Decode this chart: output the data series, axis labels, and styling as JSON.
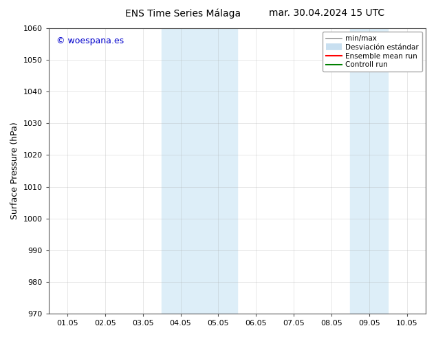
{
  "title_left": "ENS Time Series Málaga",
  "title_right": "mar. 30.04.2024 15 UTC",
  "ylabel": "Surface Pressure (hPa)",
  "ylim": [
    970,
    1060
  ],
  "yticks": [
    970,
    980,
    990,
    1000,
    1010,
    1020,
    1030,
    1040,
    1050,
    1060
  ],
  "xlim_min": 0.5,
  "xlim_max": 10.5,
  "xtick_labels": [
    "01.05",
    "02.05",
    "03.05",
    "04.05",
    "05.05",
    "06.05",
    "07.05",
    "08.05",
    "09.05",
    "10.05"
  ],
  "xtick_positions": [
    1,
    2,
    3,
    4,
    5,
    6,
    7,
    8,
    9,
    10
  ],
  "watermark": "© woespana.es",
  "watermark_color": "#0000cc",
  "shaded_bands": [
    {
      "xmin": 3.5,
      "xmax": 5.5,
      "color": "#ddeef8"
    },
    {
      "xmin": 8.5,
      "xmax": 9.5,
      "color": "#ddeef8"
    }
  ],
  "legend_entries": [
    {
      "label": "min/max",
      "color": "#999999",
      "linewidth": 1.2,
      "linestyle": "-"
    },
    {
      "label": "Desviación estándar",
      "color": "#c8dff0",
      "linewidth": 7,
      "linestyle": "-"
    },
    {
      "label": "Ensemble mean run",
      "color": "red",
      "linewidth": 1.5,
      "linestyle": "-"
    },
    {
      "label": "Controll run",
      "color": "green",
      "linewidth": 1.5,
      "linestyle": "-"
    }
  ],
  "bg_color": "#ffffff",
  "grid_color": "#aaaaaa",
  "grid_alpha": 0.4,
  "tick_fontsize": 8,
  "ylabel_fontsize": 9,
  "title_fontsize": 10,
  "watermark_fontsize": 9,
  "legend_fontsize": 7.5
}
